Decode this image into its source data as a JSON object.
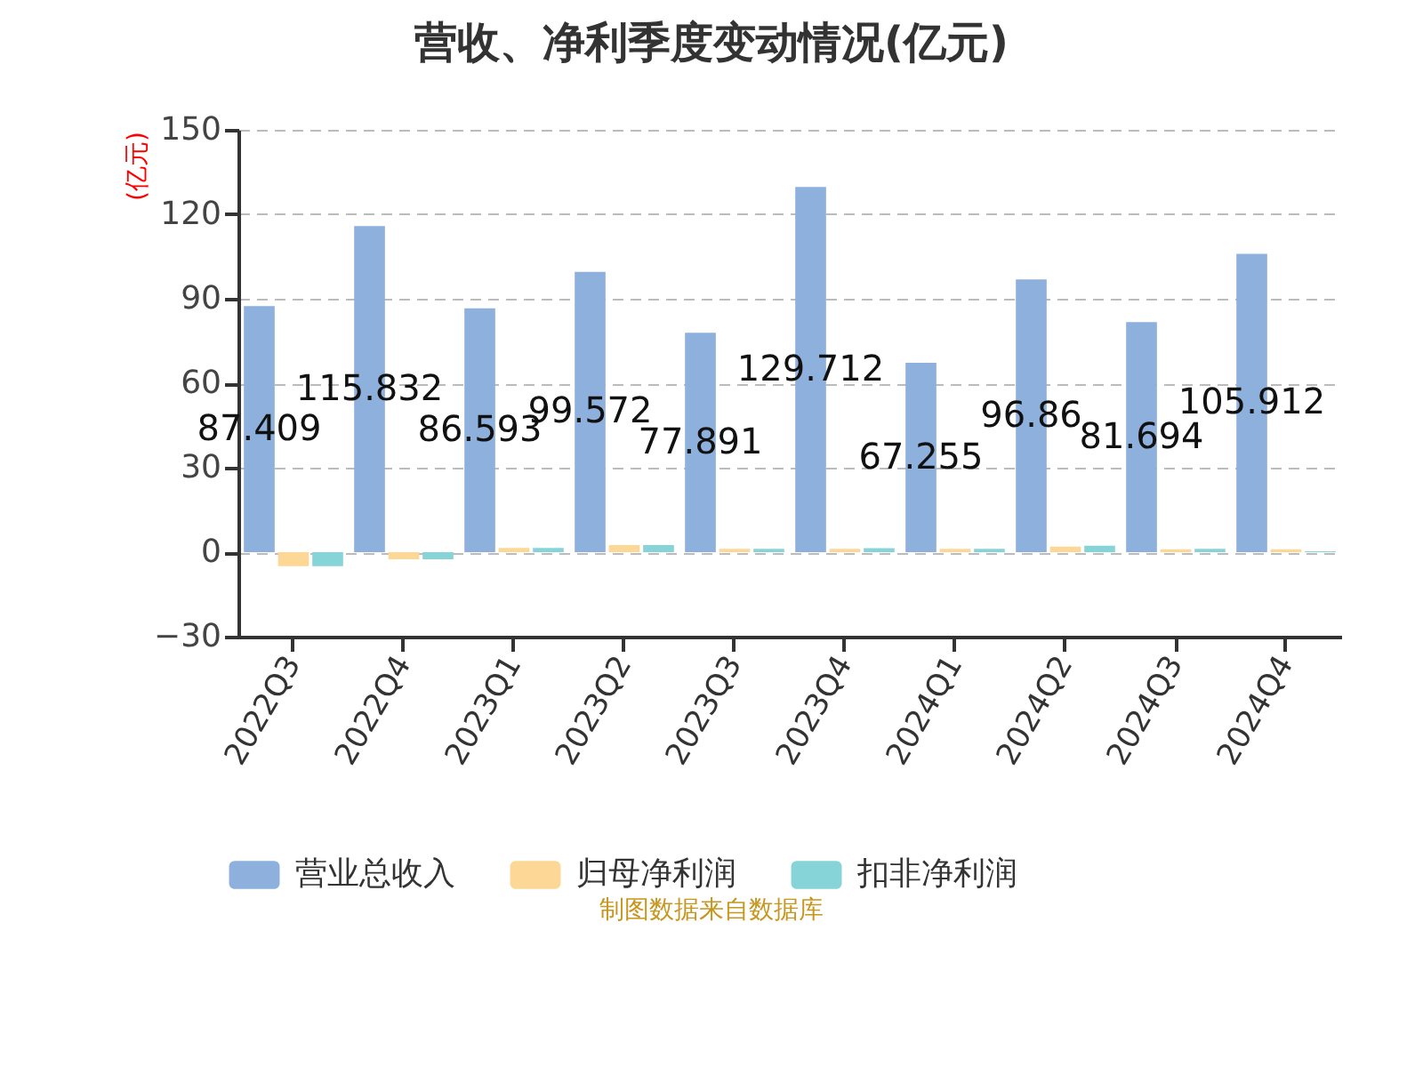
{
  "chart_data": {
    "type": "bar",
    "title": "营收、净利季度变动情况(亿元)",
    "ylabel": "(亿元)",
    "categories": [
      "2022Q3",
      "2022Q4",
      "2023Q1",
      "2023Q2",
      "2023Q3",
      "2023Q4",
      "2024Q1",
      "2024Q2",
      "2024Q3",
      "2024Q4"
    ],
    "series": [
      {
        "name": "营业总收入",
        "color": "#8eb0dc",
        "values": [
          87.409,
          115.832,
          86.593,
          99.572,
          77.891,
          129.712,
          67.255,
          96.86,
          81.694,
          105.912
        ],
        "value_labels": [
          "87.409",
          "115.832",
          "86.593",
          "99.572",
          "77.891",
          "129.712",
          "67.255",
          "96.86",
          "81.694",
          "105.912"
        ]
      },
      {
        "name": "归母净利润",
        "color": "#fdd795",
        "values": [
          -5,
          -2.5,
          1.5,
          2.5,
          1.2,
          1.2,
          1.2,
          2,
          1,
          1
        ]
      },
      {
        "name": "扣非净利润",
        "color": "#86d4d8",
        "values": [
          -5,
          -2.5,
          1.5,
          2.5,
          1.2,
          1.4,
          1.2,
          2.3,
          1.2,
          0.3
        ]
      }
    ],
    "ylim": [
      -30,
      150
    ],
    "yticks": [
      -30,
      0,
      30,
      60,
      90,
      120,
      150
    ],
    "grid": "y",
    "legend": "bottom",
    "annotations": [
      "制图数据来自数据库"
    ]
  }
}
